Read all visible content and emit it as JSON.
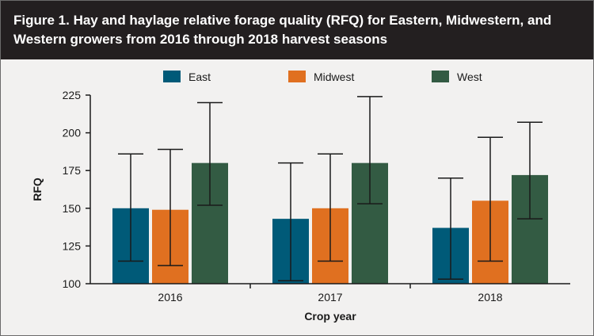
{
  "figure": {
    "title": "Figure 1. Hay and haylage relative forage quality (RFQ) for Eastern, Midwestern, and Western growers from 2016 through 2018 harvest seasons"
  },
  "chart_data": {
    "type": "bar",
    "title": "Figure 1. Hay and haylage relative forage quality (RFQ) for Eastern, Midwestern, and Western growers from 2016 through 2018 harvest seasons",
    "xlabel": "Crop year",
    "ylabel": "RFQ",
    "categories": [
      "2016",
      "2017",
      "2018"
    ],
    "ylim": [
      100,
      225
    ],
    "yticks": [
      100,
      125,
      150,
      175,
      200,
      225
    ],
    "grid": false,
    "legend_position": "top",
    "series": [
      {
        "name": "East",
        "color": "#005a78",
        "values": [
          150,
          143,
          137
        ],
        "err_low": [
          115,
          102,
          103
        ],
        "err_high": [
          186,
          180,
          170
        ]
      },
      {
        "name": "Midwest",
        "color": "#e07020",
        "values": [
          149,
          150,
          155
        ],
        "err_low": [
          112,
          115,
          115
        ],
        "err_high": [
          189,
          186,
          197
        ]
      },
      {
        "name": "West",
        "color": "#335b43",
        "values": [
          180,
          180,
          172
        ],
        "err_low": [
          152,
          153,
          143
        ],
        "err_high": [
          220,
          224,
          207
        ]
      }
    ]
  }
}
